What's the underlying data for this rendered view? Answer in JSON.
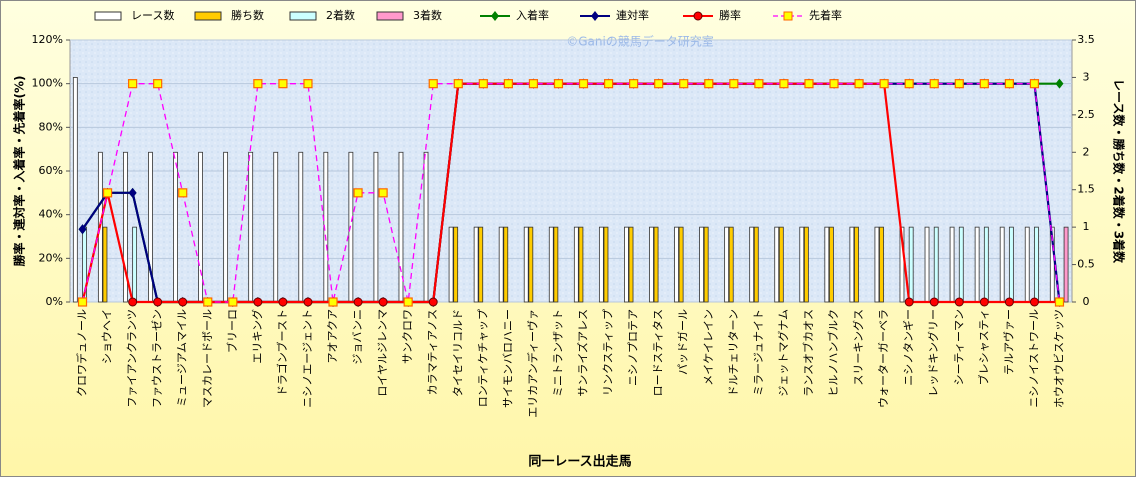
{
  "chart_data": {
    "type": "combo",
    "watermark": "©Ganiの競馬データ研究室",
    "x_label": "同一レース出走馬",
    "y_label": "勝率・連対率・入着率・先着率(%)",
    "y2_label": "レース数・勝ち数・2着数・3着数",
    "categories": [
      "クロワデュノール",
      "ショウヘイ",
      "ファイアンクランツ",
      "ファウストラーゼン",
      "ミュージアムマイル",
      "マスカレードボール",
      "ブリーロ",
      "エリキング",
      "ドラゴンブースト",
      "ニシノエージェント",
      "アオアクア",
      "ジョバンニ",
      "ロイヤルジレンマ",
      "サンクロワ",
      "カラマティアノス",
      "タイセイリコルド",
      "ロンティケチャップ",
      "サイモンバロハニー",
      "エリカアンディーヴァ",
      "ミニトランザット",
      "サンライズアレス",
      "リンクスティップ",
      "ニシノプロテア",
      "ロードスティタス",
      "パッドガール",
      "メイケイレイン",
      "ドルチェリターン",
      "ミラージュナイト",
      "ジェットマグナム",
      "ランスオブカオス",
      "ヒルノハンブルク",
      "スリーキングス",
      "ウォーターガーベラ",
      "ニシノタンギー",
      "レッドキングリー",
      "シーティーマン",
      "ブレシャスティ",
      "テルアヴァー",
      "ニシノイストワール",
      "ホウオウビスケッツ"
    ],
    "series": [
      {
        "name": "レース数",
        "type": "bar",
        "axis": "y2",
        "color": "#ffffff",
        "values": [
          3,
          2,
          2,
          2,
          2,
          2,
          2,
          2,
          2,
          2,
          2,
          2,
          2,
          2,
          2,
          1,
          1,
          1,
          1,
          1,
          1,
          1,
          1,
          1,
          1,
          1,
          1,
          1,
          1,
          1,
          1,
          1,
          1,
          1,
          1,
          1,
          1,
          1,
          1,
          1
        ]
      },
      {
        "name": "勝ち数",
        "type": "bar",
        "axis": "y2",
        "color": "#ffcc00",
        "values": [
          0,
          1,
          0,
          0,
          0,
          0,
          0,
          0,
          0,
          0,
          0,
          0,
          0,
          0,
          0,
          1,
          1,
          1,
          1,
          1,
          1,
          1,
          1,
          1,
          1,
          1,
          1,
          1,
          1,
          1,
          1,
          1,
          1,
          0,
          0,
          0,
          0,
          0,
          0,
          0
        ]
      },
      {
        "name": "2着数",
        "type": "bar",
        "axis": "y2",
        "color": "#ccffff",
        "values": [
          1,
          0,
          1,
          0,
          0,
          0,
          0,
          0,
          0,
          0,
          0,
          0,
          0,
          0,
          0,
          0,
          0,
          0,
          0,
          0,
          0,
          0,
          0,
          0,
          0,
          0,
          0,
          0,
          0,
          0,
          0,
          0,
          0,
          1,
          1,
          1,
          1,
          1,
          1,
          0
        ]
      },
      {
        "name": "3着数",
        "type": "bar",
        "axis": "y2",
        "color": "#ff99cc",
        "values": [
          0,
          0,
          0,
          0,
          0,
          0,
          0,
          0,
          0,
          0,
          0,
          0,
          0,
          0,
          0,
          0,
          0,
          0,
          0,
          0,
          0,
          0,
          0,
          0,
          0,
          0,
          0,
          0,
          0,
          0,
          0,
          0,
          0,
          0,
          0,
          0,
          0,
          0,
          0,
          1
        ]
      },
      {
        "name": "入着率",
        "type": "line",
        "marker": "diamond",
        "color": "#008000",
        "values": [
          33.3,
          50,
          50,
          0,
          0,
          0,
          0,
          0,
          0,
          0,
          0,
          0,
          0,
          0,
          0,
          100,
          100,
          100,
          100,
          100,
          100,
          100,
          100,
          100,
          100,
          100,
          100,
          100,
          100,
          100,
          100,
          100,
          100,
          100,
          100,
          100,
          100,
          100,
          100,
          100
        ]
      },
      {
        "name": "連対率",
        "type": "line",
        "marker": "diamond",
        "color": "#000080",
        "values": [
          33.3,
          50,
          50,
          0,
          0,
          0,
          0,
          0,
          0,
          0,
          0,
          0,
          0,
          0,
          0,
          100,
          100,
          100,
          100,
          100,
          100,
          100,
          100,
          100,
          100,
          100,
          100,
          100,
          100,
          100,
          100,
          100,
          100,
          100,
          100,
          100,
          100,
          100,
          100,
          0
        ]
      },
      {
        "name": "勝率",
        "type": "line",
        "marker": "circle",
        "color": "#ff0000",
        "values": [
          0,
          50,
          0,
          0,
          0,
          0,
          0,
          0,
          0,
          0,
          0,
          0,
          0,
          0,
          0,
          100,
          100,
          100,
          100,
          100,
          100,
          100,
          100,
          100,
          100,
          100,
          100,
          100,
          100,
          100,
          100,
          100,
          100,
          0,
          0,
          0,
          0,
          0,
          0,
          0
        ]
      },
      {
        "name": "先着率",
        "type": "line",
        "marker": "square",
        "dashed": true,
        "color": "#ff00ff",
        "values": [
          0,
          50,
          100,
          100,
          50,
          0,
          0,
          100,
          100,
          100,
          0,
          50,
          50,
          0,
          100,
          100,
          100,
          100,
          100,
          100,
          100,
          100,
          100,
          100,
          100,
          100,
          100,
          100,
          100,
          100,
          100,
          100,
          100,
          100,
          100,
          100,
          100,
          100,
          100,
          0
        ]
      }
    ],
    "ylim": [
      0,
      120
    ],
    "yticks": [
      {
        "value": 0,
        "label": "0%"
      },
      {
        "value": 20,
        "label": "20%"
      },
      {
        "value": 40,
        "label": "40%"
      },
      {
        "value": 60,
        "label": "60%"
      },
      {
        "value": 80,
        "label": "80%"
      },
      {
        "value": 100,
        "label": "100%"
      },
      {
        "value": 120,
        "label": "120%"
      }
    ],
    "y2lim": [
      0,
      3.5
    ],
    "y2ticks": [
      0,
      0.5,
      1,
      1.5,
      2,
      2.5,
      3,
      3.5
    ],
    "grid": true
  }
}
